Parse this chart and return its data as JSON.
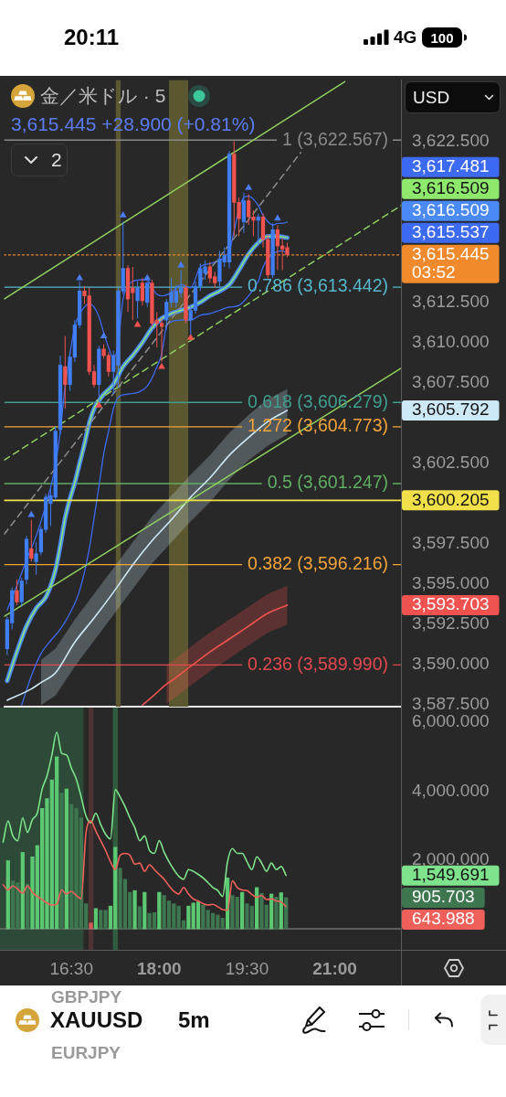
{
  "chart_data": [
    {
      "type": "candlestick",
      "title": "金／米ドル · 5",
      "subtitle": "3,615.445 +28.900 (+0.81%)",
      "x": [
        15.333,
        15.417,
        15.5,
        15.583,
        15.667,
        15.75,
        15.833,
        15.917,
        16,
        16.083,
        16.167,
        16.25,
        16.333,
        16.417,
        16.5,
        16.583,
        16.667,
        16.75,
        16.833,
        16.917,
        17,
        17.083,
        17.167,
        17.25,
        17.333,
        17.417,
        17.5,
        17.583,
        17.667,
        17.75,
        17.833,
        17.917,
        18,
        18.083,
        18.167,
        18.25,
        18.333,
        18.417,
        18.5,
        18.583,
        18.667,
        18.75,
        18.833,
        18.917,
        19,
        19.083,
        19.167,
        19.25,
        19.333,
        19.417,
        19.5,
        19.583,
        19.667,
        19.75,
        19.833,
        19.917,
        20,
        20.083,
        20.167
      ],
      "ohlc": [
        [
          3591.0,
          3593.0,
          3590.6,
          3592.8
        ],
        [
          3592.6,
          3594.8,
          3592.2,
          3594.6
        ],
        [
          3594.6,
          3595.3,
          3593.7,
          3593.9
        ],
        [
          3593.9,
          3595.4,
          3593.6,
          3595.2
        ],
        [
          3595.3,
          3598.0,
          3595.0,
          3597.8
        ],
        [
          3597.2,
          3599.0,
          3596.4,
          3596.6
        ],
        [
          3596.4,
          3597.6,
          3595.6,
          3596.9
        ],
        [
          3597.0,
          3598.6,
          3596.8,
          3598.4
        ],
        [
          3598.4,
          3600.6,
          3598.2,
          3600.4
        ],
        [
          3600.0,
          3600.9,
          3598.6,
          3600.5
        ],
        [
          3600.4,
          3604.8,
          3600.2,
          3604.5
        ],
        [
          3604.6,
          3609.2,
          3604.3,
          3608.6
        ],
        [
          3608.5,
          3610.4,
          3605.9,
          3607.4
        ],
        [
          3607.4,
          3609.4,
          3607.0,
          3609.1
        ],
        [
          3609.1,
          3611.4,
          3608.8,
          3611.1
        ],
        [
          3611.1,
          3613.8,
          3610.9,
          3613.2
        ],
        [
          3613.2,
          3613.5,
          3612.4,
          3612.9
        ],
        [
          3612.9,
          3613.4,
          3608.0,
          3608.2
        ],
        [
          3608.2,
          3608.6,
          3607.2,
          3607.4
        ],
        [
          3607.4,
          3609.8,
          3606.3,
          3609.6
        ],
        [
          3609.6,
          3609.9,
          3609.0,
          3609.2
        ],
        [
          3609.2,
          3609.4,
          3607.9,
          3608.2
        ],
        [
          3608.2,
          3609.5,
          3606.8,
          3609.2
        ],
        [
          3608.6,
          3613.4,
          3607.2,
          3613.2
        ],
        [
          3613.2,
          3617.5,
          3613.0,
          3614.6
        ],
        [
          3614.6,
          3614.8,
          3611.9,
          3612.7
        ],
        [
          3613.4,
          3614.7,
          3611.4,
          3613.1
        ],
        [
          3612.6,
          3613.8,
          3611.5,
          3613.4
        ],
        [
          3613.7,
          3614.0,
          3612.3,
          3612.6
        ],
        [
          3612.5,
          3613.8,
          3612.2,
          3613.7
        ],
        [
          3613.7,
          3613.9,
          3611.0,
          3611.2
        ],
        [
          3611.4,
          3611.9,
          3609.7,
          3611.2
        ],
        [
          3611.2,
          3611.5,
          3608.8,
          3611.0
        ],
        [
          3611.4,
          3612.7,
          3610.8,
          3612.5
        ],
        [
          3612.5,
          3614.0,
          3612.2,
          3613.1
        ],
        [
          3612.5,
          3613.6,
          3612.2,
          3613.2
        ],
        [
          3613.1,
          3614.5,
          3612.8,
          3613.4
        ],
        [
          3613.4,
          3613.6,
          3611.2,
          3611.4
        ],
        [
          3611.4,
          3612.3,
          3610.5,
          3612.0
        ],
        [
          3612.0,
          3613.8,
          3611.8,
          3613.5
        ],
        [
          3613.5,
          3614.9,
          3613.2,
          3614.6
        ],
        [
          3614.3,
          3615.1,
          3613.9,
          3614.7
        ],
        [
          3614.7,
          3615.0,
          3613.7,
          3614.0
        ],
        [
          3614.1,
          3614.4,
          3613.4,
          3613.7
        ],
        [
          3613.8,
          3615.7,
          3613.5,
          3615.2
        ],
        [
          3615.0,
          3615.9,
          3614.7,
          3615.4
        ],
        [
          3615.0,
          3621.9,
          3614.6,
          3621.7
        ],
        [
          3621.7,
          3622.5,
          3616.6,
          3618.7
        ],
        [
          3618.7,
          3619.0,
          3616.6,
          3617.7
        ],
        [
          3617.5,
          3619.3,
          3616.8,
          3618.8
        ],
        [
          3618.8,
          3619.2,
          3617.3,
          3617.8
        ],
        [
          3617.8,
          3618.2,
          3616.6,
          3617.6
        ],
        [
          3617.6,
          3618.0,
          3616.0,
          3617.8
        ],
        [
          3617.8,
          3618.0,
          3615.9,
          3616.4
        ],
        [
          3616.4,
          3616.7,
          3614.0,
          3614.2
        ],
        [
          3614.2,
          3617.4,
          3614.0,
          3617.0
        ],
        [
          3617.0,
          3617.3,
          3614.5,
          3616.0
        ],
        [
          3616.0,
          3616.5,
          3614.5,
          3615.8
        ],
        [
          3615.9,
          3616.2,
          3615.3,
          3615.445
        ]
      ],
      "colors": [
        "#3f7ef5",
        "#3f7ef5",
        "#f0534f",
        "#3f7ef5",
        "#3f7ef5",
        "#f0534f",
        "#3f7ef5",
        "#3f7ef5",
        "#3f7ef5",
        "#3f7ef5",
        "#3f7ef5",
        "#3f7ef5",
        "#f0534f",
        "#3f7ef5",
        "#3f7ef5",
        "#3f7ef5",
        "#f0534f",
        "#f0534f",
        "#f0534f",
        "#3f7ef5",
        "#f0534f",
        "#f0534f",
        "#3f7ef5",
        "#3f7ef5",
        "#3f7ef5",
        "#f0534f",
        "#f0534f",
        "#3f7ef5",
        "#f0534f",
        "#3f7ef5",
        "#f0534f",
        "#f0534f",
        "#f0534f",
        "#3f7ef5",
        "#3f7ef5",
        "#3f7ef5",
        "#3f7ef5",
        "#f0534f",
        "#3f7ef5",
        "#3f7ef5",
        "#3f7ef5",
        "#3f7ef5",
        "#f0534f",
        "#f0534f",
        "#3f7ef5",
        "#3f7ef5",
        "#3f7ef5",
        "#f0534f",
        "#f0534f",
        "#3f7ef5",
        "#f0534f",
        "#f0534f",
        "#3f7ef5",
        "#f0534f",
        "#f0534f",
        "#3f7ef5",
        "#f0534f",
        "#f0534f",
        "#f0534f"
      ],
      "xlim": [
        15.28,
        22.13
      ],
      "ylim": [
        3587.4,
        3626.3
      ],
      "yticks": [
        {
          "value": 3587.5,
          "label": "3,587.500"
        },
        {
          "value": 3590,
          "label": "3,590.000"
        },
        {
          "value": 3592.5,
          "label": "3,592.500"
        },
        {
          "value": 3595,
          "label": "3,595.000"
        },
        {
          "value": 3597.5,
          "label": "3,597.500"
        },
        {
          "value": 3602.5,
          "label": "3,602.500"
        },
        {
          "value": 3607.5,
          "label": "3,607.500"
        },
        {
          "value": 3610,
          "label": "3,610.000"
        },
        {
          "value": 3612.5,
          "label": "3,612.500"
        },
        {
          "value": 3622.5,
          "label": "3,622.500"
        }
      ],
      "tick_labels": "y",
      "series": [
        {
          "type": "line",
          "color": "#3d6af2",
          "x": [
            15.333,
            15.5,
            15.667,
            15.833,
            16,
            16.167,
            16.25,
            16.333,
            16.417,
            16.5,
            16.667,
            16.75,
            16.833,
            16.917,
            17,
            17.083,
            17.167,
            17.25,
            17.333,
            17.417,
            17.5,
            17.667,
            17.75,
            17.833,
            17.917,
            18,
            18.167,
            18.333,
            18.5,
            18.667,
            18.833,
            19,
            19.083,
            19.167,
            19.25,
            19.333,
            19.417,
            19.5,
            19.583,
            19.667,
            19.75,
            19.833,
            19.917,
            20,
            20.083,
            20.167
          ],
          "values": [
            3593.4,
            3594.9,
            3596.5,
            3598.0,
            3599.9,
            3602.4,
            3604.5,
            3607.3,
            3609.3,
            3611.0,
            3612.2,
            3612.4,
            3612.2,
            3611.6,
            3610.6,
            3609.7,
            3609.0,
            3610.0,
            3612.7,
            3613.5,
            3613.8,
            3613.9,
            3613.9,
            3613.4,
            3613.0,
            3612.9,
            3613.1,
            3613.6,
            3613.4,
            3614.7,
            3614.9,
            3615.1,
            3615.3,
            3615.7,
            3616.9,
            3618.3,
            3619.0,
            3619.1,
            3618.9,
            3618.5,
            3617.9,
            3617.5,
            3617.3,
            3617.4,
            3617.4,
            3617.481
          ]
        },
        {
          "type": "line",
          "color": "#4a8af7",
          "x": [
            15.333,
            15.5,
            15.667,
            15.833,
            16,
            16.083,
            16.167,
            16.25,
            16.333,
            16.417,
            16.5,
            16.583,
            16.667,
            16.75,
            16.833,
            16.917,
            17,
            17.167,
            17.333,
            17.5,
            17.667,
            17.833,
            18,
            18.167,
            18.333,
            18.5,
            18.667,
            18.833,
            19,
            19.167,
            19.333,
            19.5,
            19.667,
            19.833,
            20,
            20.167
          ],
          "values": [
            3589.0,
            3590.8,
            3592.4,
            3593.5,
            3594.2,
            3594.9,
            3595.9,
            3597.4,
            3599.1,
            3600.3,
            3601.3,
            3602.5,
            3603.7,
            3605.0,
            3605.9,
            3606.4,
            3606.8,
            3607.4,
            3608.5,
            3609.2,
            3610.0,
            3610.9,
            3611.5,
            3611.8,
            3612.0,
            3612.2,
            3612.5,
            3612.9,
            3613.2,
            3613.6,
            3614.5,
            3615.5,
            3616.2,
            3616.6,
            3616.6,
            3616.509
          ]
        },
        {
          "type": "line",
          "color": "#8de86c",
          "x": [
            15.333,
            15.5,
            15.667,
            15.833,
            16,
            16.083,
            16.167,
            16.25,
            16.333,
            16.417,
            16.5,
            16.583,
            16.667,
            16.75,
            16.833,
            16.917,
            17,
            17.167,
            17.333,
            17.5,
            17.667,
            17.833,
            18,
            18.167,
            18.333,
            18.5,
            18.667,
            18.833,
            19,
            19.167,
            19.333,
            19.5,
            19.667,
            19.833,
            20,
            20.167
          ],
          "values": [
            3589.0,
            3590.8,
            3592.4,
            3593.5,
            3594.2,
            3594.9,
            3595.9,
            3597.4,
            3599.1,
            3600.3,
            3601.3,
            3602.5,
            3603.7,
            3605.0,
            3605.9,
            3606.4,
            3606.8,
            3607.4,
            3608.5,
            3609.2,
            3610.0,
            3610.9,
            3611.5,
            3611.8,
            3612.0,
            3612.2,
            3612.5,
            3612.9,
            3613.2,
            3613.6,
            3614.5,
            3615.5,
            3616.2,
            3616.6,
            3616.6,
            3616.509
          ]
        },
        {
          "type": "line",
          "color": "#3d6af2",
          "x": [
            15.583,
            15.75,
            15.917,
            16.083,
            16.25,
            16.417,
            16.583,
            16.75,
            16.833,
            16.917,
            17,
            17.083,
            17.167,
            17.25,
            17.417,
            17.583,
            17.75,
            17.833,
            17.917,
            18,
            18.083,
            18.167,
            18.333,
            18.5,
            18.667,
            18.833,
            19,
            19.167,
            19.333,
            19.5,
            19.667,
            19.75,
            19.917,
            20.083,
            20.167
          ],
          "values": [
            3587.5,
            3589.3,
            3590.7,
            3591.5,
            3592.2,
            3593.2,
            3594.6,
            3597.2,
            3599.1,
            3601.1,
            3603.1,
            3604.5,
            3605.9,
            3606.6,
            3606.8,
            3606.9,
            3607.3,
            3607.8,
            3608.5,
            3609.3,
            3611.0,
            3611.3,
            3611.4,
            3611.4,
            3611.7,
            3611.8,
            3612.0,
            3612.2,
            3612.3,
            3612.9,
            3613.8,
            3614.7,
            3615.5,
            3615.7,
            3615.537
          ]
        },
        {
          "type": "line",
          "color": "#cde8f6",
          "x": [
            15.333,
            15.75,
            15.917,
            16.167,
            16.5,
            16.833,
            17.167,
            17.5,
            17.833,
            18.167,
            18.5,
            18.833,
            19.167,
            19.5,
            19.833,
            20.167
          ],
          "values": [
            3587.8,
            3588.5,
            3588.9,
            3589.5,
            3591.4,
            3592.9,
            3594.5,
            3596.2,
            3597.7,
            3599.0,
            3600.4,
            3601.6,
            3603.0,
            3604.1,
            3605.1,
            3605.792
          ],
          "lower": [
            null,
            null,
            3587.5,
            3588.1,
            3589.9,
            3591.5,
            3593.1,
            3594.7,
            3596.3,
            3597.6,
            3598.9,
            3600.1,
            3601.5,
            3602.7,
            3603.6,
            3604.3
          ],
          "upper": [
            null,
            null,
            3590.3,
            3591.0,
            3592.8,
            3594.4,
            3596.0,
            3597.6,
            3599.2,
            3600.5,
            3601.8,
            3603.0,
            3604.4,
            3605.5,
            3606.5,
            3607.1
          ]
        },
        {
          "type": "line",
          "color": "#f0524f",
          "x": [
            17.667,
            17.833,
            18.083,
            18.167,
            18.5,
            18.833,
            19.167,
            19.5,
            19.833,
            20.167
          ],
          "values": [
            3587.5,
            3588.0,
            3588.8,
            3589.0,
            3589.9,
            3590.8,
            3591.6,
            3592.4,
            3593.2,
            3593.703
          ],
          "lower": [
            null,
            null,
            3587.6,
            3587.8,
            3588.7,
            3589.6,
            3590.4,
            3591.2,
            3592.0,
            3592.5
          ],
          "upper": [
            null,
            null,
            3590.0,
            3590.2,
            3591.1,
            3592.0,
            3592.8,
            3593.6,
            3594.4,
            3594.9
          ]
        },
        {
          "type": "line",
          "color": "#8fcf5e",
          "x": [
            15.28,
            21.16
          ],
          "values": [
            3612.7,
            3626.2
          ]
        },
        {
          "type": "line",
          "color": "#8fcf5e",
          "x": [
            15.28,
            22.13
          ],
          "values": [
            3593.0,
            3608.4
          ]
        },
        {
          "type": "line",
          "color": "#8fcf5e",
          "line_style": "dashed",
          "x": [
            15.28,
            22.13
          ],
          "values": [
            3602.7,
            3618.5
          ]
        },
        {
          "type": "line",
          "color": "#8c8c8c",
          "line_style": "dashed",
          "x": [
            15.28,
            20.4
          ],
          "values": [
            3598.1,
            3621.8
          ]
        },
        {
          "type": "scatter",
          "marker": "triangle",
          "color": "#4a7cf5",
          "x": [
            15.75,
            16.583,
            17,
            17.333,
            17.75,
            18.333,
            19.5,
            20
          ],
          "values": [
            3599.3,
            3614.0,
            3610.4,
            3617.9,
            3614.0,
            3614.8,
            3619.6,
            3617.7
          ]
        },
        {
          "type": "scatter",
          "marker": "triangle",
          "color": "#f0534f",
          "x": [
            16.917,
            17.583,
            18,
            18.5
          ],
          "values": [
            3606.1,
            3611.1,
            3608.5,
            3610.3
          ]
        },
        {
          "type": "line",
          "color": "#f2e04a",
          "x": [
            15.28,
            22.13
          ],
          "values": [
            3600.205,
            3600.205
          ],
          "value_labels": [
            null,
            "3,600.205"
          ]
        },
        {
          "type": "line",
          "color": "#f08a2c",
          "line_style": "dotted",
          "x": [
            15.28,
            22.13
          ],
          "values": [
            3615.445,
            3615.445
          ],
          "value_labels": [
            null,
            "3,615.445\n03:52"
          ]
        }
      ],
      "ref_lines": [
        {
          "axis": "y",
          "value": 3622.567,
          "label": "1 (3,622.567)",
          "color": "#8a8a8a"
        },
        {
          "axis": "y",
          "value": 3613.442,
          "label": "0.786 (3,613.442)",
          "color": "#55b6cc"
        },
        {
          "axis": "y",
          "value": 3606.279,
          "label": "0.618 (3,606.279)",
          "color": "#3f9e8e"
        },
        {
          "axis": "y",
          "value": 3604.773,
          "label": "1.272 (3,604.773)",
          "color": "#f2a33a"
        },
        {
          "axis": "y",
          "value": 3601.247,
          "label": "0.5 (3,601.247)",
          "color": "#5fae62"
        },
        {
          "axis": "y",
          "value": 3596.216,
          "label": "0.382 (3,596.216)",
          "color": "#f2a33a"
        },
        {
          "axis": "y",
          "value": 3589.99,
          "label": "0.236 (3,589.990)",
          "color": "#e0484f"
        }
      ],
      "bands": [
        {
          "axis": "x",
          "from": 17.208,
          "to": 17.292,
          "color": "#5b5730"
        },
        {
          "axis": "x",
          "from": 18.125,
          "to": 18.458,
          "color": "#5b5730"
        }
      ],
      "annotations": [
        "20:11",
        "4G",
        "100",
        "2",
        "USD",
        "XAUUSD",
        "5m",
        "GBPJPY",
        "EURJPY",
        "3,617.481",
        "3,616.509",
        "3,616.509",
        "3,615.537",
        "3,605.792",
        "3,593.703"
      ]
    },
    {
      "type": "bar",
      "xlim": [
        15.28,
        22.13
      ],
      "ylim": [
        -611,
        6428
      ],
      "xticks": [
        {
          "value": 16.5,
          "label": "16:30"
        },
        {
          "value": 18,
          "label": "18:00"
        },
        {
          "value": 19.5,
          "label": "19:30"
        },
        {
          "value": 21,
          "label": "21:00"
        }
      ],
      "yticks": [
        {
          "value": 0,
          "label": null
        },
        {
          "value": 2000,
          "label": "2,000.000"
        },
        {
          "value": 4000,
          "label": "4,000.000"
        },
        {
          "value": 6000,
          "label": "6,000.000"
        }
      ],
      "series": [
        {
          "x": [
            15.417,
            15.5,
            15.583,
            15.667,
            15.75,
            15.833,
            15.917,
            16,
            16.083,
            16.167,
            16.25,
            16.333,
            16.417,
            16.5,
            16.583,
            16.667,
            16.75,
            16.833,
            16.917,
            17,
            17.083,
            17.167,
            17.25,
            17.333,
            17.417,
            17.5,
            17.583,
            17.667,
            17.75,
            17.833,
            17.917,
            18,
            18.083,
            18.167,
            18.25,
            18.333,
            18.417,
            18.5,
            18.583,
            18.667,
            18.75,
            18.833,
            18.917,
            19,
            19.083,
            19.167,
            19.25,
            19.333,
            19.417,
            19.5,
            19.583,
            19.667,
            19.75,
            19.833,
            19.917,
            20,
            20.083,
            20.167
          ],
          "colors": [
            "#5cc872",
            "#3e7650",
            "#3e7650",
            "#5cc872",
            "#3e7650",
            "#5cc872",
            "#5cc872",
            "#5cc872",
            "#5cc872",
            "#5cc872",
            "#5cc872",
            "#3e7650",
            "#5cc872",
            "#3e7650",
            "#3e7650",
            "#3e7650",
            "#3e7650",
            "#d95a5a",
            "#5cc872",
            "#3e7650",
            "#3e7650",
            "#5cc872",
            "#5cc872",
            "#3e7650",
            "#3e7650",
            "#3e7650",
            "#5cc872",
            "#3e7650",
            "#5cc872",
            "#3e7650",
            "#3e7650",
            "#5cc872",
            "#3e7650",
            "#3e7650",
            "#3e7650",
            "#3e7650",
            "#3e7650",
            "#5cc872",
            "#5cc872",
            "#5cc872",
            "#3e7650",
            "#3e7650",
            "#3e7650",
            "#3e7650",
            "#3e7650",
            "#5cc872",
            "#3e7650",
            "#3e7650",
            "#5cc872",
            "#3e7650",
            "#3e7650",
            "#5cc872",
            "#3e7650",
            "#3e7650",
            "#5cc872",
            "#3e7650",
            "#5cc872",
            "#3e7650"
          ],
          "values": [
            1980,
            1390,
            1340,
            2220,
            1300,
            2090,
            2420,
            3500,
            3780,
            4330,
            5000,
            3940,
            4060,
            3620,
            3500,
            3220,
            730,
            170,
            590,
            540,
            540,
            660,
            2370,
            1760,
            1440,
            1060,
            1110,
            640,
            1060,
            450,
            470,
            1060,
            970,
            810,
            730,
            660,
            240,
            660,
            750,
            780,
            690,
            540,
            450,
            400,
            310,
            1480,
            970,
            920,
            1060,
            730,
            660,
            1200,
            1030,
            690,
            1010,
            920,
            1050,
            905.703
          ]
        },
        {
          "type": "line",
          "color": "#7ee38c",
          "x": [
            15.333,
            15.417,
            15.5,
            15.583,
            15.667,
            15.75,
            15.833,
            15.917,
            16,
            16.083,
            16.167,
            16.25,
            16.333,
            16.417,
            16.5,
            16.583,
            16.667,
            16.75,
            16.833,
            16.917,
            17,
            17.083,
            17.167,
            17.25,
            17.333,
            17.417,
            17.5,
            17.583,
            17.667,
            17.75,
            17.833,
            17.917,
            18,
            18.083,
            18.167,
            18.25,
            18.333,
            18.417,
            18.5,
            18.583,
            18.667,
            18.75,
            18.833,
            18.917,
            19,
            19.083,
            19.167,
            19.25,
            19.333,
            19.417,
            19.5,
            19.583,
            19.667,
            19.75,
            19.833,
            19.917,
            20,
            20.083,
            20.167
          ],
          "values": [
            2520,
            3130,
            2700,
            2560,
            3220,
            2800,
            3170,
            3360,
            4060,
            4440,
            5050,
            5710,
            5100,
            5050,
            4670,
            4350,
            3830,
            3270,
            3080,
            3360,
            3030,
            2750,
            2610,
            4040,
            3830,
            3550,
            3220,
            2940,
            2560,
            2700,
            2280,
            2190,
            2560,
            2230,
            1950,
            1720,
            1530,
            1440,
            1720,
            1670,
            1580,
            1480,
            1340,
            1200,
            1110,
            940,
            1950,
            2330,
            2190,
            2190,
            1950,
            1720,
            2090,
            1910,
            1670,
            1910,
            1720,
            1810,
            1549.691
          ]
        },
        {
          "type": "line",
          "color": "#f0605a",
          "x": [
            15.333,
            15.417,
            15.5,
            15.583,
            15.667,
            15.75,
            15.833,
            15.917,
            16,
            16.083,
            16.167,
            16.25,
            16.333,
            16.417,
            16.5,
            16.583,
            16.667,
            16.75,
            16.833,
            16.917,
            17,
            17.083,
            17.167,
            17.25,
            17.333,
            17.417,
            17.5,
            17.583,
            17.667,
            17.75,
            17.833,
            17.917,
            18,
            18.083,
            18.167,
            18.25,
            18.333,
            18.417,
            18.5,
            18.583,
            18.667,
            18.75,
            18.833,
            18.917,
            19,
            19.083,
            19.167,
            19.25,
            19.333,
            19.417,
            19.5,
            19.583,
            19.667,
            19.75,
            19.833,
            19.917,
            20,
            20.083,
            20.167
          ],
          "values": [
            1280,
            1130,
            1250,
            1150,
            1030,
            1250,
            1060,
            940,
            850,
            750,
            690,
            710,
            1130,
            1010,
            1090,
            970,
            870,
            2800,
            3130,
            2840,
            2560,
            2280,
            1950,
            1720,
            2140,
            2190,
            2140,
            1880,
            1910,
            1670,
            1860,
            1720,
            1580,
            1440,
            1250,
            1090,
            1010,
            1200,
            1010,
            870,
            810,
            730,
            690,
            710,
            640,
            560,
            540,
            1390,
            1200,
            1130,
            1110,
            1000,
            920,
            970,
            850,
            870,
            810,
            780,
            643.988
          ]
        }
      ],
      "ref_lines": [
        {
          "axis": "y",
          "value": 0,
          "color": "#6e6e6e"
        }
      ],
      "bands": [
        {
          "axis": "x",
          "from": 15.28,
          "to": 16.708,
          "color": "#2c4a37"
        },
        {
          "axis": "x",
          "from": 16.792,
          "to": 16.875,
          "color": "#4e3333"
        },
        {
          "axis": "x",
          "from": 17.208,
          "to": 17.292,
          "color": "#2f5d3e"
        }
      ],
      "annotations": [
        "905.703",
        "1,549.691",
        "643.988"
      ]
    }
  ]
}
